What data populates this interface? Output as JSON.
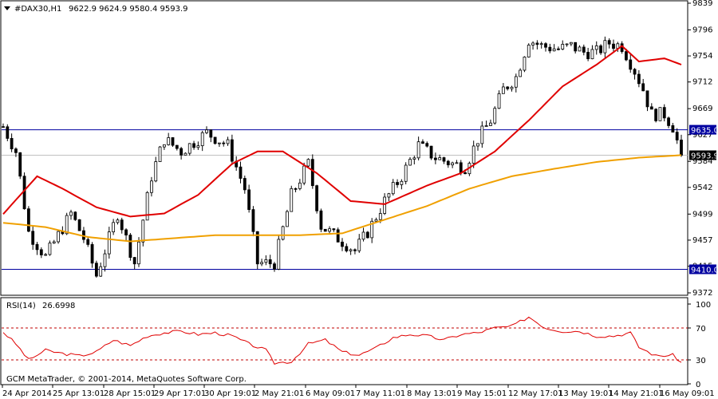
{
  "header": {
    "symbol_label": "#DAX30,H1",
    "ohlc": "9622.9 9624.9 9580.4 9593.9"
  },
  "footer": {
    "copyright": "GCM MetaTrader, © 2001-2014, MetaQuotes Software Corp."
  },
  "colors": {
    "background": "#ffffff",
    "candle": "#000000",
    "ma_fast": "#e00000",
    "ma_slow": "#f0a000",
    "hline": "#0000a0",
    "rsi": "#e00000",
    "rsi_levels": "#c00000",
    "price_tag_bg": "#0000a0",
    "current_price_tag_bg": "#000000"
  },
  "chart_data": [
    {
      "type": "candlestick",
      "title": "#DAX30,H1",
      "ylim": [
        9372,
        9839
      ],
      "y_ticks": [
        9839,
        9796,
        9754,
        9712,
        9669,
        9627,
        9584,
        9542,
        9499,
        9457,
        9415,
        9372
      ],
      "x_tick_labels": [
        "24 Apr 2014",
        "25 Apr 13:01",
        "28 Apr 15:01",
        "29 Apr 17:01",
        "30 Apr 19:01",
        "2 May 21:01",
        "6 May 09:01",
        "7 May 11:01",
        "8 May 13:01",
        "9 May 15:01",
        "12 May 17:01",
        "13 May 19:01",
        "14 May 21:01",
        "16 May 09:01"
      ],
      "horizontal_lines": [
        {
          "value": 9635.0,
          "label": "9635.0"
        },
        {
          "value": 9410.0,
          "label": "9410.0"
        }
      ],
      "current_price": {
        "value": 9593.9,
        "label": "9593.9"
      },
      "close_anchors": [
        [
          0,
          9640
        ],
        [
          3,
          9600
        ],
        [
          6,
          9470
        ],
        [
          10,
          9430
        ],
        [
          16,
          9500
        ],
        [
          19,
          9460
        ],
        [
          22,
          9400
        ],
        [
          27,
          9500
        ],
        [
          31,
          9420
        ],
        [
          35,
          9560
        ],
        [
          38,
          9620
        ],
        [
          42,
          9600
        ],
        [
          48,
          9630
        ],
        [
          53,
          9610
        ],
        [
          57,
          9540
        ],
        [
          60,
          9420
        ],
        [
          64,
          9420
        ],
        [
          68,
          9530
        ],
        [
          72,
          9580
        ],
        [
          75,
          9480
        ],
        [
          79,
          9460
        ],
        [
          83,
          9440
        ],
        [
          86,
          9470
        ],
        [
          90,
          9520
        ],
        [
          94,
          9560
        ],
        [
          98,
          9610
        ],
        [
          102,
          9590
        ],
        [
          106,
          9580
        ],
        [
          109,
          9575
        ],
        [
          112,
          9620
        ],
        [
          115,
          9650
        ],
        [
          118,
          9700
        ],
        [
          121,
          9720
        ],
        [
          124,
          9780
        ],
        [
          127,
          9770
        ],
        [
          131,
          9765
        ],
        [
          134,
          9770
        ],
        [
          137,
          9760
        ],
        [
          140,
          9760
        ],
        [
          143,
          9775
        ],
        [
          146,
          9770
        ],
        [
          149,
          9730
        ],
        [
          151,
          9700
        ],
        [
          153,
          9660
        ],
        [
          156,
          9660
        ],
        [
          158,
          9640
        ],
        [
          160,
          9594
        ]
      ],
      "ma_fast": {
        "name": "",
        "values": [
          [
            0,
            9499
          ],
          [
            8,
            9560
          ],
          [
            14,
            9540
          ],
          [
            22,
            9510
          ],
          [
            30,
            9495
          ],
          [
            38,
            9500
          ],
          [
            46,
            9530
          ],
          [
            54,
            9580
          ],
          [
            60,
            9600
          ],
          [
            66,
            9600
          ],
          [
            74,
            9565
          ],
          [
            82,
            9520
          ],
          [
            90,
            9515
          ],
          [
            100,
            9545
          ],
          [
            108,
            9565
          ],
          [
            116,
            9600
          ],
          [
            124,
            9650
          ],
          [
            132,
            9705
          ],
          [
            140,
            9740
          ],
          [
            146,
            9770
          ],
          [
            150,
            9745
          ],
          [
            156,
            9750
          ],
          [
            160,
            9740
          ]
        ]
      },
      "ma_slow": {
        "name": "",
        "values": [
          [
            0,
            9485
          ],
          [
            10,
            9478
          ],
          [
            20,
            9462
          ],
          [
            30,
            9455
          ],
          [
            40,
            9460
          ],
          [
            50,
            9465
          ],
          [
            60,
            9465
          ],
          [
            70,
            9465
          ],
          [
            80,
            9468
          ],
          [
            90,
            9490
          ],
          [
            100,
            9512
          ],
          [
            110,
            9540
          ],
          [
            120,
            9560
          ],
          [
            130,
            9572
          ],
          [
            140,
            9583
          ],
          [
            150,
            9590
          ],
          [
            160,
            9594
          ]
        ]
      }
    },
    {
      "type": "line",
      "title": "RSI(14)",
      "value_label": "26.6998",
      "ylim": [
        0,
        100
      ],
      "y_ticks": [
        100,
        70,
        30,
        0
      ],
      "levels": [
        70,
        30
      ],
      "series": [
        {
          "name": "RSI(14)",
          "values": [
            [
              0,
              65
            ],
            [
              3,
              50
            ],
            [
              6,
              30
            ],
            [
              10,
              42
            ],
            [
              14,
              38
            ],
            [
              18,
              35
            ],
            [
              22,
              40
            ],
            [
              26,
              55
            ],
            [
              30,
              48
            ],
            [
              34,
              60
            ],
            [
              38,
              64
            ],
            [
              42,
              66
            ],
            [
              46,
              62
            ],
            [
              50,
              64
            ],
            [
              54,
              60
            ],
            [
              58,
              50
            ],
            [
              62,
              42
            ],
            [
              64,
              26
            ],
            [
              68,
              28
            ],
            [
              72,
              50
            ],
            [
              76,
              55
            ],
            [
              80,
              40
            ],
            [
              84,
              36
            ],
            [
              88,
              45
            ],
            [
              92,
              58
            ],
            [
              96,
              62
            ],
            [
              100,
              60
            ],
            [
              104,
              55
            ],
            [
              108,
              62
            ],
            [
              112,
              64
            ],
            [
              116,
              70
            ],
            [
              120,
              72
            ],
            [
              124,
              84
            ],
            [
              128,
              70
            ],
            [
              132,
              66
            ],
            [
              136,
              66
            ],
            [
              140,
              60
            ],
            [
              144,
              60
            ],
            [
              148,
              64
            ],
            [
              150,
              46
            ],
            [
              154,
              35
            ],
            [
              158,
              36
            ],
            [
              160,
              27
            ]
          ]
        }
      ]
    }
  ]
}
